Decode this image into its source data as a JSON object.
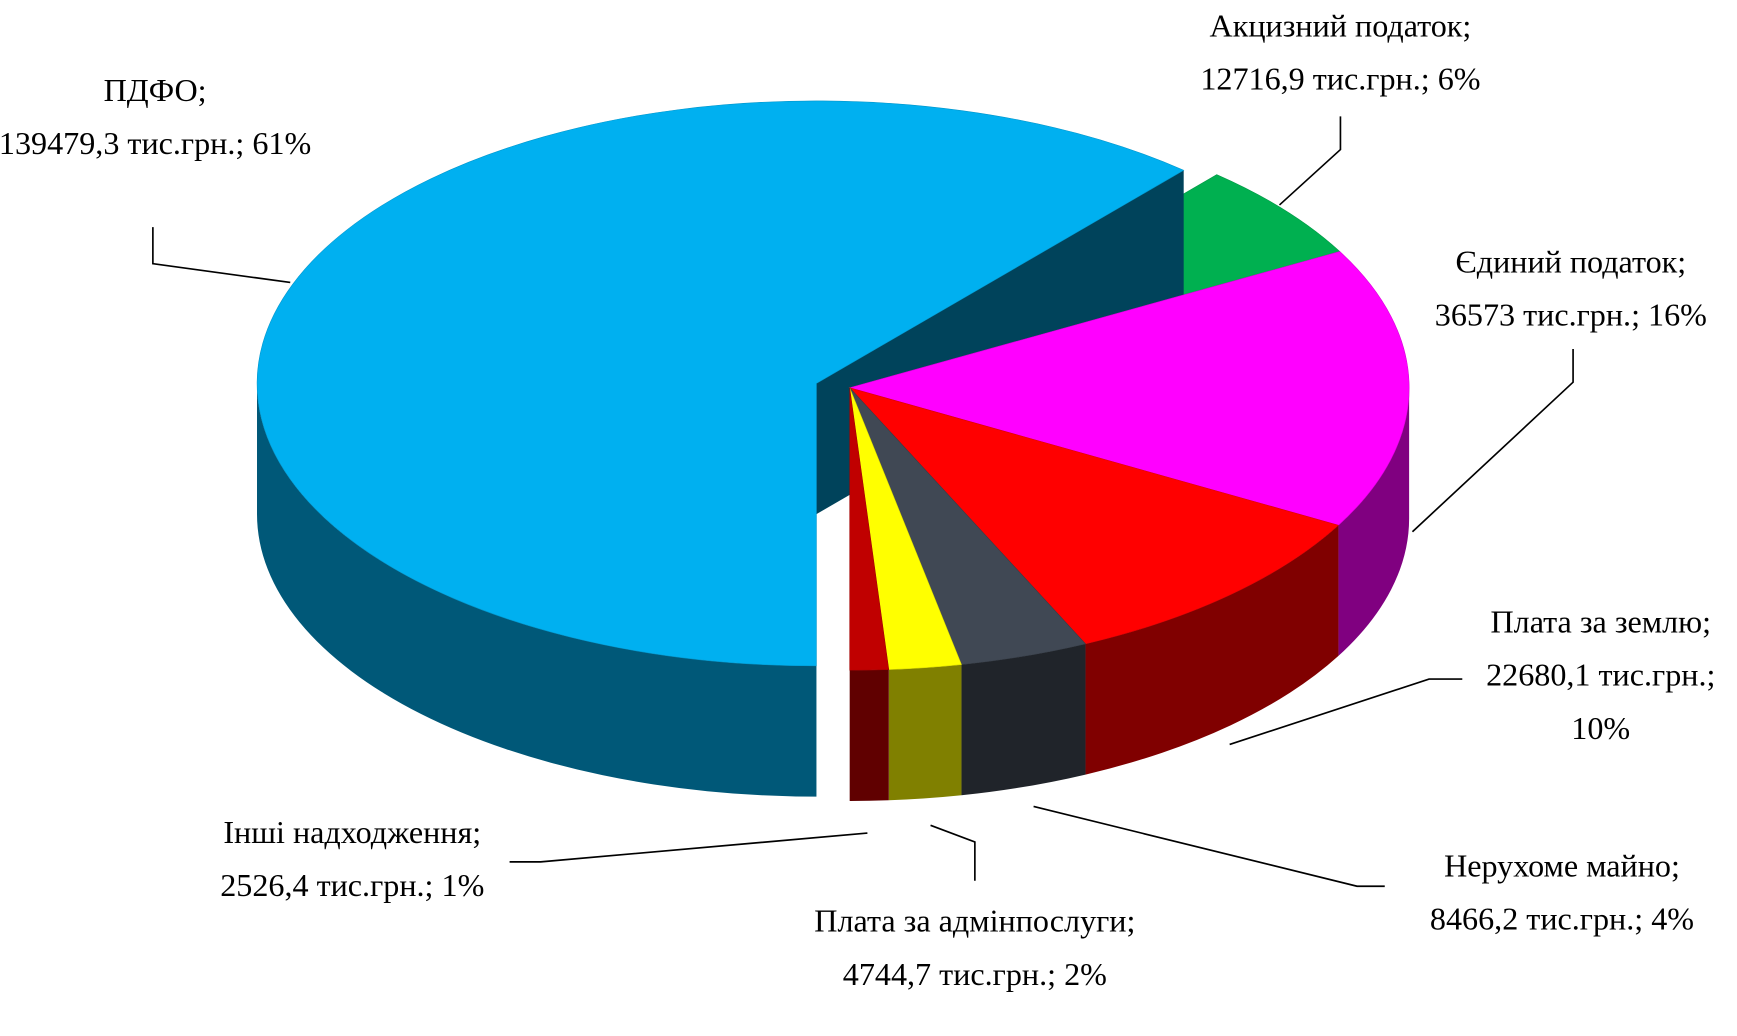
{
  "chart_data": {
    "type": "pie3d",
    "categories": [
      "ПДФО;",
      "Акцизний податок;",
      "Єдиний податок;",
      "Плата за землю;",
      "Нерухоме майно;",
      "Плата за адмінпослуги;",
      "Інші надходження;"
    ],
    "values": [
      139479.3,
      12716.9,
      36573,
      22680.1,
      8466.2,
      4744.7,
      2526.4
    ],
    "value_labels": [
      "139479,3 тис.грн.;",
      "12716,9 тис.грн.;",
      "36573 тис.грн.;",
      "22680,1 тис.грн.;",
      "8466,2 тис.грн.;",
      "4744,7 тис.грн.;",
      "2526,4 тис.грн.;"
    ],
    "percents": [
      61,
      6,
      16,
      10,
      4,
      2,
      1
    ],
    "percent_labels": [
      "61%",
      "6%",
      "16%",
      "10%",
      "4%",
      "2%",
      "1%"
    ],
    "colors": [
      "#00b0f0",
      "#00b050",
      "#ff00ff",
      "#ff0000",
      "#404854",
      "#ffff00",
      "#c00000"
    ],
    "exploded": [
      0
    ]
  }
}
